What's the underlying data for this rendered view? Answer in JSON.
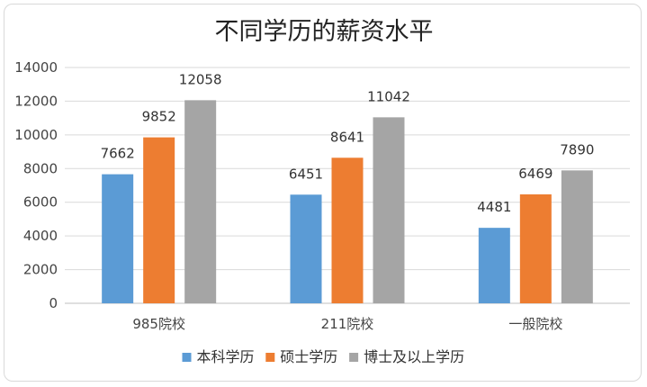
{
  "colors": {
    "series": [
      "#5b9bd5",
      "#ed7d31",
      "#a5a5a5"
    ],
    "grid": "#d9d9d9",
    "axis": "#bfbfbf"
  },
  "chart_data": {
    "type": "bar",
    "title": "不同学历的薪资水平",
    "xlabel": "",
    "ylabel": "",
    "categories": [
      "985院校",
      "211院校",
      "一般院校"
    ],
    "series": [
      {
        "name": "本科学历",
        "values": [
          7662,
          6451,
          4481
        ]
      },
      {
        "name": "硕士学历",
        "values": [
          9852,
          8641,
          6469
        ]
      },
      {
        "name": "博士及以上学历",
        "values": [
          12058,
          11042,
          7890
        ]
      }
    ],
    "ylim": [
      0,
      14000
    ],
    "yticks": [
      "0",
      "2000",
      "4000",
      "6000",
      "8000",
      "10000",
      "12000",
      "14000"
    ],
    "data_labels": [
      [
        "7662",
        "6451",
        "4481"
      ],
      [
        "9852",
        "8641",
        "6469"
      ],
      [
        "12058",
        "11042",
        "7890"
      ]
    ],
    "grid": true,
    "legend_position": "bottom"
  }
}
